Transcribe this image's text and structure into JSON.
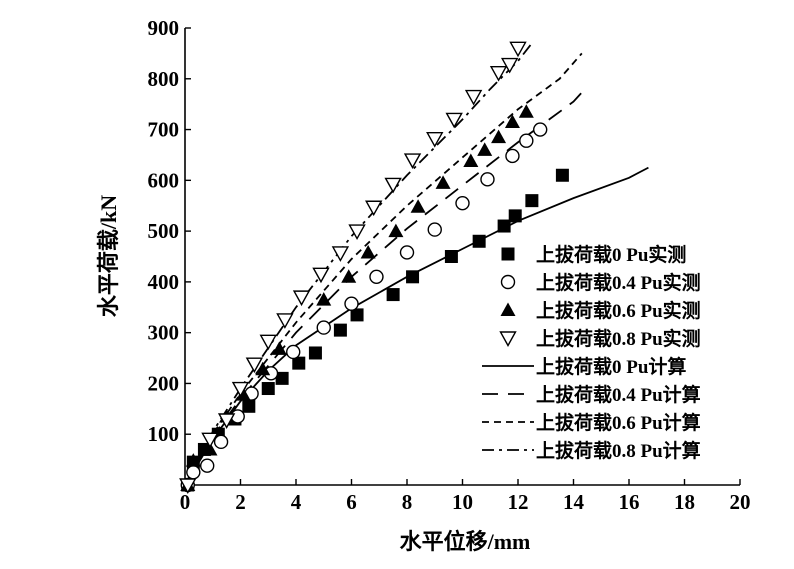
{
  "chart_data": {
    "type": "scatter",
    "xlabel": "水平位移/mm",
    "ylabel": "水平荷载/kN",
    "xlim": [
      0,
      20
    ],
    "ylim": [
      0,
      900
    ],
    "xticks": [
      0,
      2,
      4,
      6,
      8,
      10,
      12,
      14,
      16,
      18,
      20
    ],
    "yticks": [
      100,
      200,
      300,
      400,
      500,
      600,
      700,
      800,
      900
    ],
    "grid": false,
    "legend_position": "bottom-right",
    "series": [
      {
        "name": "上拔荷载0 Pu实测",
        "kind": "marker",
        "marker": "square-filled",
        "points": [
          [
            0.1,
            0
          ],
          [
            0.3,
            45
          ],
          [
            0.7,
            70
          ],
          [
            1.2,
            100
          ],
          [
            1.8,
            130
          ],
          [
            2.3,
            155
          ],
          [
            3.0,
            190
          ],
          [
            3.5,
            210
          ],
          [
            4.1,
            240
          ],
          [
            4.7,
            260
          ],
          [
            5.6,
            305
          ],
          [
            6.2,
            335
          ],
          [
            7.5,
            375
          ],
          [
            8.2,
            410
          ],
          [
            9.6,
            450
          ],
          [
            10.6,
            480
          ],
          [
            11.5,
            510
          ],
          [
            11.9,
            530
          ],
          [
            12.5,
            560
          ],
          [
            13.6,
            610
          ]
        ]
      },
      {
        "name": "上拔荷载0.4 Pu实测",
        "kind": "marker",
        "marker": "circle-open",
        "points": [
          [
            0.1,
            0
          ],
          [
            0.3,
            25
          ],
          [
            0.8,
            38
          ],
          [
            1.3,
            85
          ],
          [
            1.9,
            135
          ],
          [
            2.4,
            180
          ],
          [
            3.1,
            220
          ],
          [
            3.9,
            262
          ],
          [
            5.0,
            310
          ],
          [
            6.0,
            357
          ],
          [
            6.9,
            410
          ],
          [
            8.0,
            458
          ],
          [
            9.0,
            503
          ],
          [
            10.0,
            555
          ],
          [
            10.9,
            602
          ],
          [
            11.8,
            648
          ],
          [
            12.3,
            678
          ],
          [
            12.8,
            700
          ]
        ]
      },
      {
        "name": "上拔荷载0.6 Pu实测",
        "kind": "marker",
        "marker": "triangle-filled",
        "points": [
          [
            0.1,
            0
          ],
          [
            0.3,
            48
          ],
          [
            0.9,
            70
          ],
          [
            1.5,
            135
          ],
          [
            2.1,
            178
          ],
          [
            2.8,
            228
          ],
          [
            3.4,
            268
          ],
          [
            5.0,
            365
          ],
          [
            5.9,
            410
          ],
          [
            6.6,
            458
          ],
          [
            7.6,
            500
          ],
          [
            8.4,
            548
          ],
          [
            9.3,
            595
          ],
          [
            10.3,
            638
          ],
          [
            10.8,
            660
          ],
          [
            11.3,
            685
          ],
          [
            11.8,
            715
          ],
          [
            12.3,
            735
          ]
        ]
      },
      {
        "name": "上拔荷载0.8 Pu实测",
        "kind": "marker",
        "marker": "triangle-open",
        "points": [
          [
            0.1,
            0
          ],
          [
            0.9,
            90
          ],
          [
            1.5,
            128
          ],
          [
            2.0,
            190
          ],
          [
            2.5,
            238
          ],
          [
            3.0,
            283
          ],
          [
            3.6,
            325
          ],
          [
            4.2,
            370
          ],
          [
            4.9,
            415
          ],
          [
            5.6,
            457
          ],
          [
            6.2,
            500
          ],
          [
            6.8,
            547
          ],
          [
            7.5,
            592
          ],
          [
            8.2,
            640
          ],
          [
            9.0,
            682
          ],
          [
            9.7,
            720
          ],
          [
            10.4,
            765
          ],
          [
            11.3,
            812
          ],
          [
            11.7,
            828
          ],
          [
            12.0,
            860
          ]
        ]
      },
      {
        "name": "上拔荷载0 Pu计算",
        "kind": "line",
        "dash": "solid",
        "points": [
          [
            0,
            0
          ],
          [
            1,
            90
          ],
          [
            2,
            165
          ],
          [
            3,
            225
          ],
          [
            4,
            275
          ],
          [
            6,
            348
          ],
          [
            8,
            410
          ],
          [
            10,
            465
          ],
          [
            12,
            520
          ],
          [
            14,
            565
          ],
          [
            16,
            605
          ],
          [
            16.7,
            625
          ]
        ]
      },
      {
        "name": "上拔荷载0.4 Pu计算",
        "kind": "line",
        "dash": "long-dash",
        "points": [
          [
            0,
            0
          ],
          [
            1,
            95
          ],
          [
            2,
            170
          ],
          [
            3,
            235
          ],
          [
            4,
            300
          ],
          [
            6,
            410
          ],
          [
            8,
            505
          ],
          [
            10,
            590
          ],
          [
            12,
            675
          ],
          [
            14,
            755
          ],
          [
            14.5,
            785
          ]
        ]
      },
      {
        "name": "上拔荷载0.6 Pu计算",
        "kind": "line",
        "dash": "short-dash",
        "points": [
          [
            0,
            0
          ],
          [
            1,
            100
          ],
          [
            2,
            180
          ],
          [
            3,
            250
          ],
          [
            4,
            320
          ],
          [
            6,
            445
          ],
          [
            8,
            550
          ],
          [
            10,
            645
          ],
          [
            12,
            740
          ],
          [
            13.5,
            800
          ],
          [
            14.3,
            850
          ]
        ]
      },
      {
        "name": "上拔荷载0.8 Pu计算",
        "kind": "line",
        "dash": "dash-dot",
        "points": [
          [
            0,
            0
          ],
          [
            1,
            105
          ],
          [
            2,
            190
          ],
          [
            3,
            270
          ],
          [
            4,
            350
          ],
          [
            6,
            490
          ],
          [
            8,
            610
          ],
          [
            10,
            720
          ],
          [
            11,
            780
          ],
          [
            12,
            835
          ],
          [
            12.5,
            870
          ]
        ]
      }
    ]
  }
}
